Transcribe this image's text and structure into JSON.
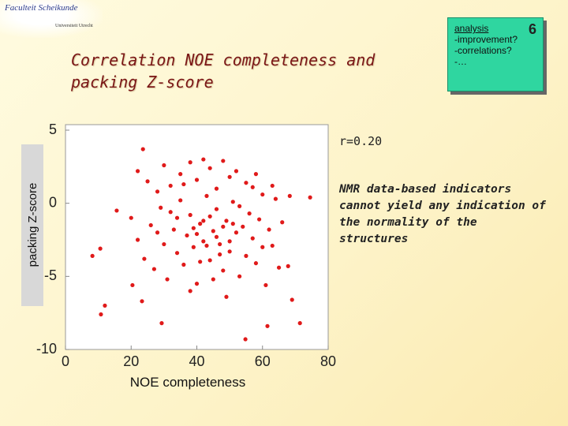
{
  "header": {
    "faculty": "Faculteit Scheikunde",
    "university": "Universiteit Utrecht"
  },
  "note_box": {
    "title": "analysis",
    "number": "6",
    "items": [
      "-improvement?",
      "-correlations?",
      "-…"
    ]
  },
  "comment": "NMR data-based indicators cannot yield any indication of the normality of the structures",
  "chart_data": {
    "type": "scatter",
    "title": "Correlation NOE completeness and packing Z-score",
    "annotation": "r=0.20",
    "xlabel": "NOE completeness",
    "ylabel": "packing Z-score",
    "xlim": [
      0,
      80
    ],
    "ylim": [
      -10,
      5
    ],
    "xticks": [
      0,
      20,
      40,
      60,
      80
    ],
    "yticks": [
      5,
      0,
      -5,
      -10
    ],
    "color": "#e01a1a",
    "x": [
      23.6,
      10.8,
      12,
      29.3,
      54.8,
      71.4,
      8.2,
      10.6,
      15.6,
      69,
      61.5,
      68.3,
      74.5,
      67.8,
      23.3,
      20.4,
      22,
      25,
      28,
      30,
      32,
      35,
      38,
      40,
      42,
      44,
      46,
      48,
      50,
      52,
      55,
      58,
      60,
      63,
      20,
      22,
      24,
      26,
      27,
      29,
      30,
      31,
      33,
      34,
      35,
      36,
      37,
      38,
      39,
      40,
      41,
      42,
      43,
      44,
      45,
      46,
      47,
      48,
      49,
      50,
      51,
      52,
      53,
      54,
      55,
      56,
      57,
      58,
      59,
      60,
      61,
      62,
      63,
      64,
      65,
      66,
      32,
      36,
      40,
      44,
      47,
      50,
      53,
      57,
      41,
      45,
      38,
      49,
      28,
      34,
      43,
      46,
      48,
      42,
      39,
      51
    ],
    "values": [
      3.7,
      -7.6,
      -7,
      -8.2,
      -9.3,
      -8.2,
      -3.6,
      -3.1,
      -0.5,
      -6.6,
      -8.4,
      0.5,
      0.4,
      -4.3,
      -6.7,
      -5.6,
      2.2,
      1.5,
      0.8,
      2.6,
      1.2,
      2.0,
      2.8,
      1.6,
      3.0,
      2.4,
      1.0,
      2.9,
      1.8,
      2.2,
      1.4,
      2.0,
      0.6,
      1.2,
      -1.0,
      -2.5,
      -3.8,
      -1.5,
      -4.5,
      -0.3,
      -2.8,
      -5.2,
      -1.8,
      -3.4,
      0.2,
      -4.2,
      -2.2,
      -0.8,
      -3.0,
      -5.5,
      -1.4,
      -2.6,
      0.5,
      -3.9,
      -1.9,
      -0.4,
      -2.8,
      -4.6,
      -1.2,
      -3.3,
      0.1,
      -2.0,
      -5.0,
      -1.6,
      -3.6,
      -0.7,
      -2.4,
      -4.1,
      -1.1,
      -3.0,
      -5.6,
      -1.8,
      -2.9,
      0.3,
      -4.4,
      -1.3,
      -0.6,
      1.3,
      -2.1,
      -0.9,
      -3.5,
      -2.6,
      -0.2,
      1.1,
      -4.0,
      -5.2,
      -6.0,
      -6.4,
      -2.0,
      -1.0,
      -2.9,
      -2.3,
      -1.6,
      -1.2,
      -1.7,
      -1.4
    ]
  }
}
